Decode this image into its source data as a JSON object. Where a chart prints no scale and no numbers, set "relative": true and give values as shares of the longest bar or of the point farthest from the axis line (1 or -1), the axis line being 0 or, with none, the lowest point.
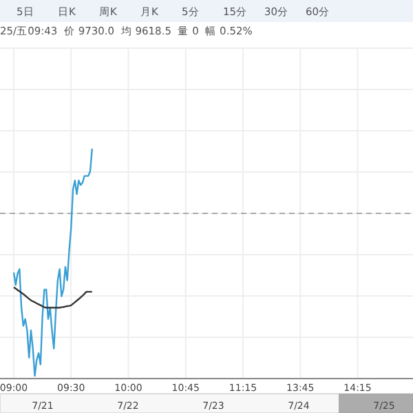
{
  "chart_data": {
    "type": "line",
    "relative": true,
    "annotations": [
      "5日",
      "日K",
      "周K",
      "月K",
      "5分",
      "15分",
      "30分",
      "60分",
      "25/五09:43  价 9730.0  均 9618.5  量 0  幅 0.52%",
      "7/21",
      "7/22",
      "7/23",
      "7/24",
      "7/25"
    ],
    "categories": [
      "09:00",
      null,
      null,
      null,
      null,
      null,
      null,
      null,
      null,
      null,
      null,
      null,
      null,
      null,
      null,
      null,
      null,
      null,
      null,
      null,
      null,
      null,
      null,
      null,
      null,
      null,
      null,
      null,
      null,
      null,
      "09:30",
      null,
      null,
      null,
      null,
      null,
      null,
      null,
      null,
      null,
      null,
      null,
      null,
      null,
      null,
      null,
      null,
      null,
      null,
      null,
      null,
      null,
      null,
      null,
      null,
      null,
      null,
      null,
      null,
      null,
      "10:00",
      null,
      null,
      null,
      null,
      null,
      null,
      null,
      null,
      null,
      null,
      null,
      null,
      null,
      null,
      null,
      null,
      null,
      null,
      null,
      null,
      null,
      null,
      null,
      null,
      null,
      null,
      null,
      null,
      null,
      "10:45",
      null,
      null,
      null,
      null,
      null,
      null,
      null,
      null,
      null,
      null,
      null,
      null,
      null,
      null,
      null,
      null,
      null,
      null,
      null,
      null,
      null,
      null,
      null,
      null,
      null,
      null,
      null,
      null,
      null,
      "11:15",
      null,
      null,
      null,
      null,
      null,
      null,
      null,
      null,
      null,
      null,
      null,
      null,
      null,
      null,
      null,
      null,
      null,
      null,
      null,
      null,
      null,
      null,
      null,
      null,
      null,
      null,
      null,
      null,
      null,
      "13:45",
      null,
      null,
      null,
      null,
      null,
      null,
      null,
      null,
      null,
      null,
      null,
      null,
      null,
      null,
      null,
      null,
      null,
      null,
      null,
      null,
      null,
      null,
      null,
      null,
      null,
      null,
      null,
      null,
      null,
      "14:15",
      null,
      null,
      null,
      null,
      null,
      null,
      null,
      null,
      null,
      null,
      null,
      null,
      null,
      null,
      null,
      null,
      null,
      null,
      null,
      null,
      null,
      null,
      null,
      null,
      null,
      null,
      null,
      null,
      null
    ],
    "grid": true,
    "ref_lines": [
      {
        "axis": "y",
        "value": 0.715,
        "color": "#aaaaaa",
        "line_style": "dashed"
      }
    ],
    "series": [
      {
        "color": "#3a9fd5",
        "values": [
          0.455,
          0.4,
          0.45,
          0.47,
          0.3,
          0.22,
          0.25,
          0.2,
          0.08,
          0.2,
          0.12,
          0,
          0.07,
          0.1,
          0.05,
          0.26,
          0.38,
          0.38,
          0.25,
          0.3,
          0.2,
          0.12,
          0.28,
          0.42,
          0.47,
          0.35,
          0.38,
          0.48,
          0.42,
          0.55,
          0.65,
          0.82,
          0.86,
          0.8,
          0.86,
          0.84,
          0.85,
          0.88,
          0.88,
          0.88,
          0.9,
          1,
          null,
          null,
          null,
          null,
          null,
          null,
          null,
          null,
          null,
          null,
          null,
          null,
          null,
          null,
          null,
          null,
          null,
          null,
          null,
          null,
          null,
          null,
          null,
          null,
          null,
          null,
          null,
          null,
          null,
          null,
          null,
          null,
          null,
          null,
          null,
          null,
          null,
          null,
          null,
          null,
          null,
          null,
          null,
          null,
          null,
          null,
          null,
          null,
          null,
          null,
          null,
          null,
          null,
          null,
          null,
          null,
          null,
          null,
          null,
          null,
          null,
          null,
          null,
          null,
          null,
          null,
          null,
          null,
          null,
          null,
          null,
          null,
          null,
          null,
          null,
          null,
          null,
          null,
          null,
          null,
          null,
          null,
          null,
          null,
          null,
          null,
          null,
          null,
          null,
          null,
          null,
          null,
          null,
          null,
          null,
          null,
          null,
          null,
          null,
          null,
          null,
          null,
          null,
          null,
          null,
          null,
          null,
          null,
          null,
          null,
          null,
          null,
          null,
          null,
          null,
          null,
          null,
          null,
          null,
          null,
          null,
          null,
          null,
          null,
          null,
          null,
          null,
          null,
          null,
          null,
          null,
          null,
          null,
          null,
          null,
          null,
          null,
          null,
          null,
          null,
          null,
          null,
          null,
          null,
          null,
          null,
          null,
          null,
          null,
          null,
          null,
          null,
          null,
          null,
          null,
          null,
          null,
          null,
          null,
          null,
          null,
          null,
          null,
          null,
          null,
          null,
          null,
          null
        ]
      },
      {
        "color": "#333333",
        "values": [
          0.39,
          0.384,
          0.378,
          0.372,
          0.366,
          0.36,
          0.353,
          0.346,
          0.339,
          0.332,
          0.328,
          0.324,
          0.319,
          0.315,
          0.311,
          0.306,
          0.302,
          0.3,
          0.3,
          0.3,
          0.3,
          0.3,
          0.3,
          0.3,
          0.3,
          0.302,
          0.303,
          0.305,
          0.307,
          0.308,
          0.31,
          0.317,
          0.324,
          0.331,
          0.338,
          0.345,
          0.353,
          0.361,
          0.37,
          0.37,
          0.37,
          0.37,
          null,
          null,
          null,
          null,
          null,
          null,
          null,
          null,
          null,
          null,
          null,
          null,
          null,
          null,
          null,
          null,
          null,
          null,
          null,
          null,
          null,
          null,
          null,
          null,
          null,
          null,
          null,
          null,
          null,
          null,
          null,
          null,
          null,
          null,
          null,
          null,
          null,
          null,
          null,
          null,
          null,
          null,
          null,
          null,
          null,
          null,
          null,
          null,
          null,
          null,
          null,
          null,
          null,
          null,
          null,
          null,
          null,
          null,
          null,
          null,
          null,
          null,
          null,
          null,
          null,
          null,
          null,
          null,
          null,
          null,
          null,
          null,
          null,
          null,
          null,
          null,
          null,
          null,
          null,
          null,
          null,
          null,
          null,
          null,
          null,
          null,
          null,
          null,
          null,
          null,
          null,
          null,
          null,
          null,
          null,
          null,
          null,
          null,
          null,
          null,
          null,
          null,
          null,
          null,
          null,
          null,
          null,
          null,
          null,
          null,
          null,
          null,
          null,
          null,
          null,
          null,
          null,
          null,
          null,
          null,
          null,
          null,
          null,
          null,
          null,
          null,
          null,
          null,
          null,
          null,
          null,
          null,
          null,
          null,
          null,
          null,
          null,
          null,
          null,
          null,
          null,
          null,
          null,
          null,
          null,
          null,
          null,
          null,
          null,
          null,
          null,
          null,
          null,
          null,
          null,
          null,
          null,
          null,
          null,
          null,
          null,
          null,
          null,
          null,
          null,
          null,
          null,
          null
        ]
      }
    ]
  }
}
